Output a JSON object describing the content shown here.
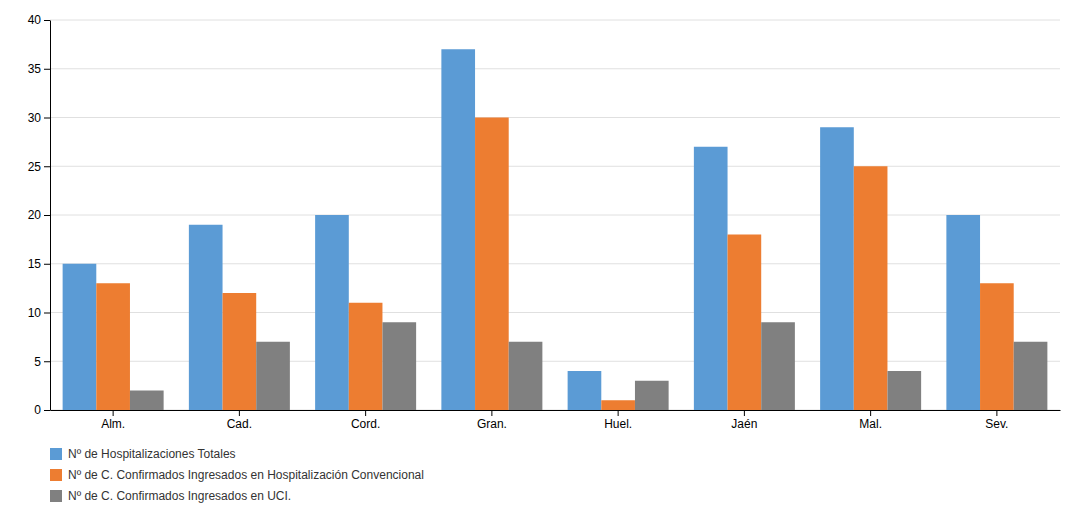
{
  "chart_data": {
    "type": "bar",
    "categories": [
      "Alm.",
      "Cad.",
      "Cord.",
      "Gran.",
      "Huel.",
      "Jaén",
      "Mal.",
      "Sev."
    ],
    "series": [
      {
        "name": "Nº de Hospitalizaciones Totales",
        "color": "#5B9BD5",
        "values": [
          15,
          19,
          20,
          37,
          4,
          27,
          29,
          20
        ]
      },
      {
        "name": "Nº de C. Confirmados Ingresados en Hospitalización Convencional",
        "color": "#ED7D31",
        "values": [
          13,
          12,
          11,
          30,
          1,
          18,
          25,
          13
        ]
      },
      {
        "name": "Nº de C. Confirmados Ingresados en UCI.",
        "color": "#808080",
        "values": [
          2,
          7,
          9,
          7,
          3,
          9,
          4,
          7
        ]
      }
    ],
    "ylim": [
      0,
      40
    ],
    "yticks": [
      0,
      5,
      10,
      15,
      20,
      25,
      30,
      35,
      40
    ],
    "grid": true,
    "legend": "bottom"
  }
}
